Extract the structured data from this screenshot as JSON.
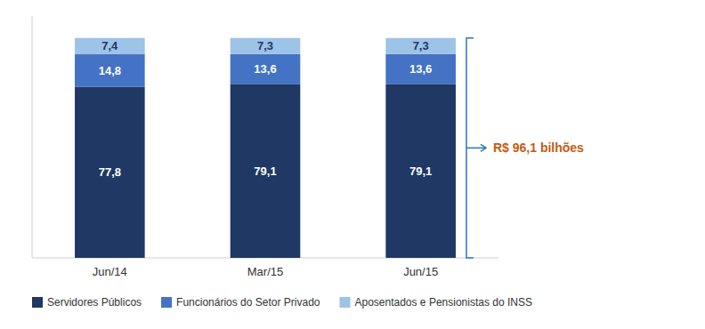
{
  "chart_data": {
    "type": "bar",
    "stacked": true,
    "data_labels": true,
    "tick_labels": "x",
    "legend": "bottom",
    "categories": [
      "Jun/14",
      "Mar/15",
      "Jun/15"
    ],
    "series": [
      {
        "name": "Servidores Públicos",
        "color": "#1F3864",
        "values": [
          77.8,
          79.1,
          79.1
        ],
        "value_labels": [
          "77,8",
          "79,1",
          "79,1"
        ]
      },
      {
        "name": "Funcionários do Setor Privado",
        "color": "#4472C4",
        "values": [
          14.8,
          13.6,
          13.6
        ],
        "value_labels": [
          "14,8",
          "13,6",
          "13,6"
        ]
      },
      {
        "name": "Aposentados e Pensionistas do INSS",
        "color": "#9DC3E6",
        "values": [
          7.4,
          7.3,
          7.3
        ],
        "value_labels": [
          "7,4",
          "7,3",
          "7,3"
        ]
      }
    ],
    "ylim": [
      0,
      110
    ],
    "annotations": [
      {
        "text": "R$ 96,1 bilhões",
        "color": "#C55A11"
      }
    ]
  }
}
